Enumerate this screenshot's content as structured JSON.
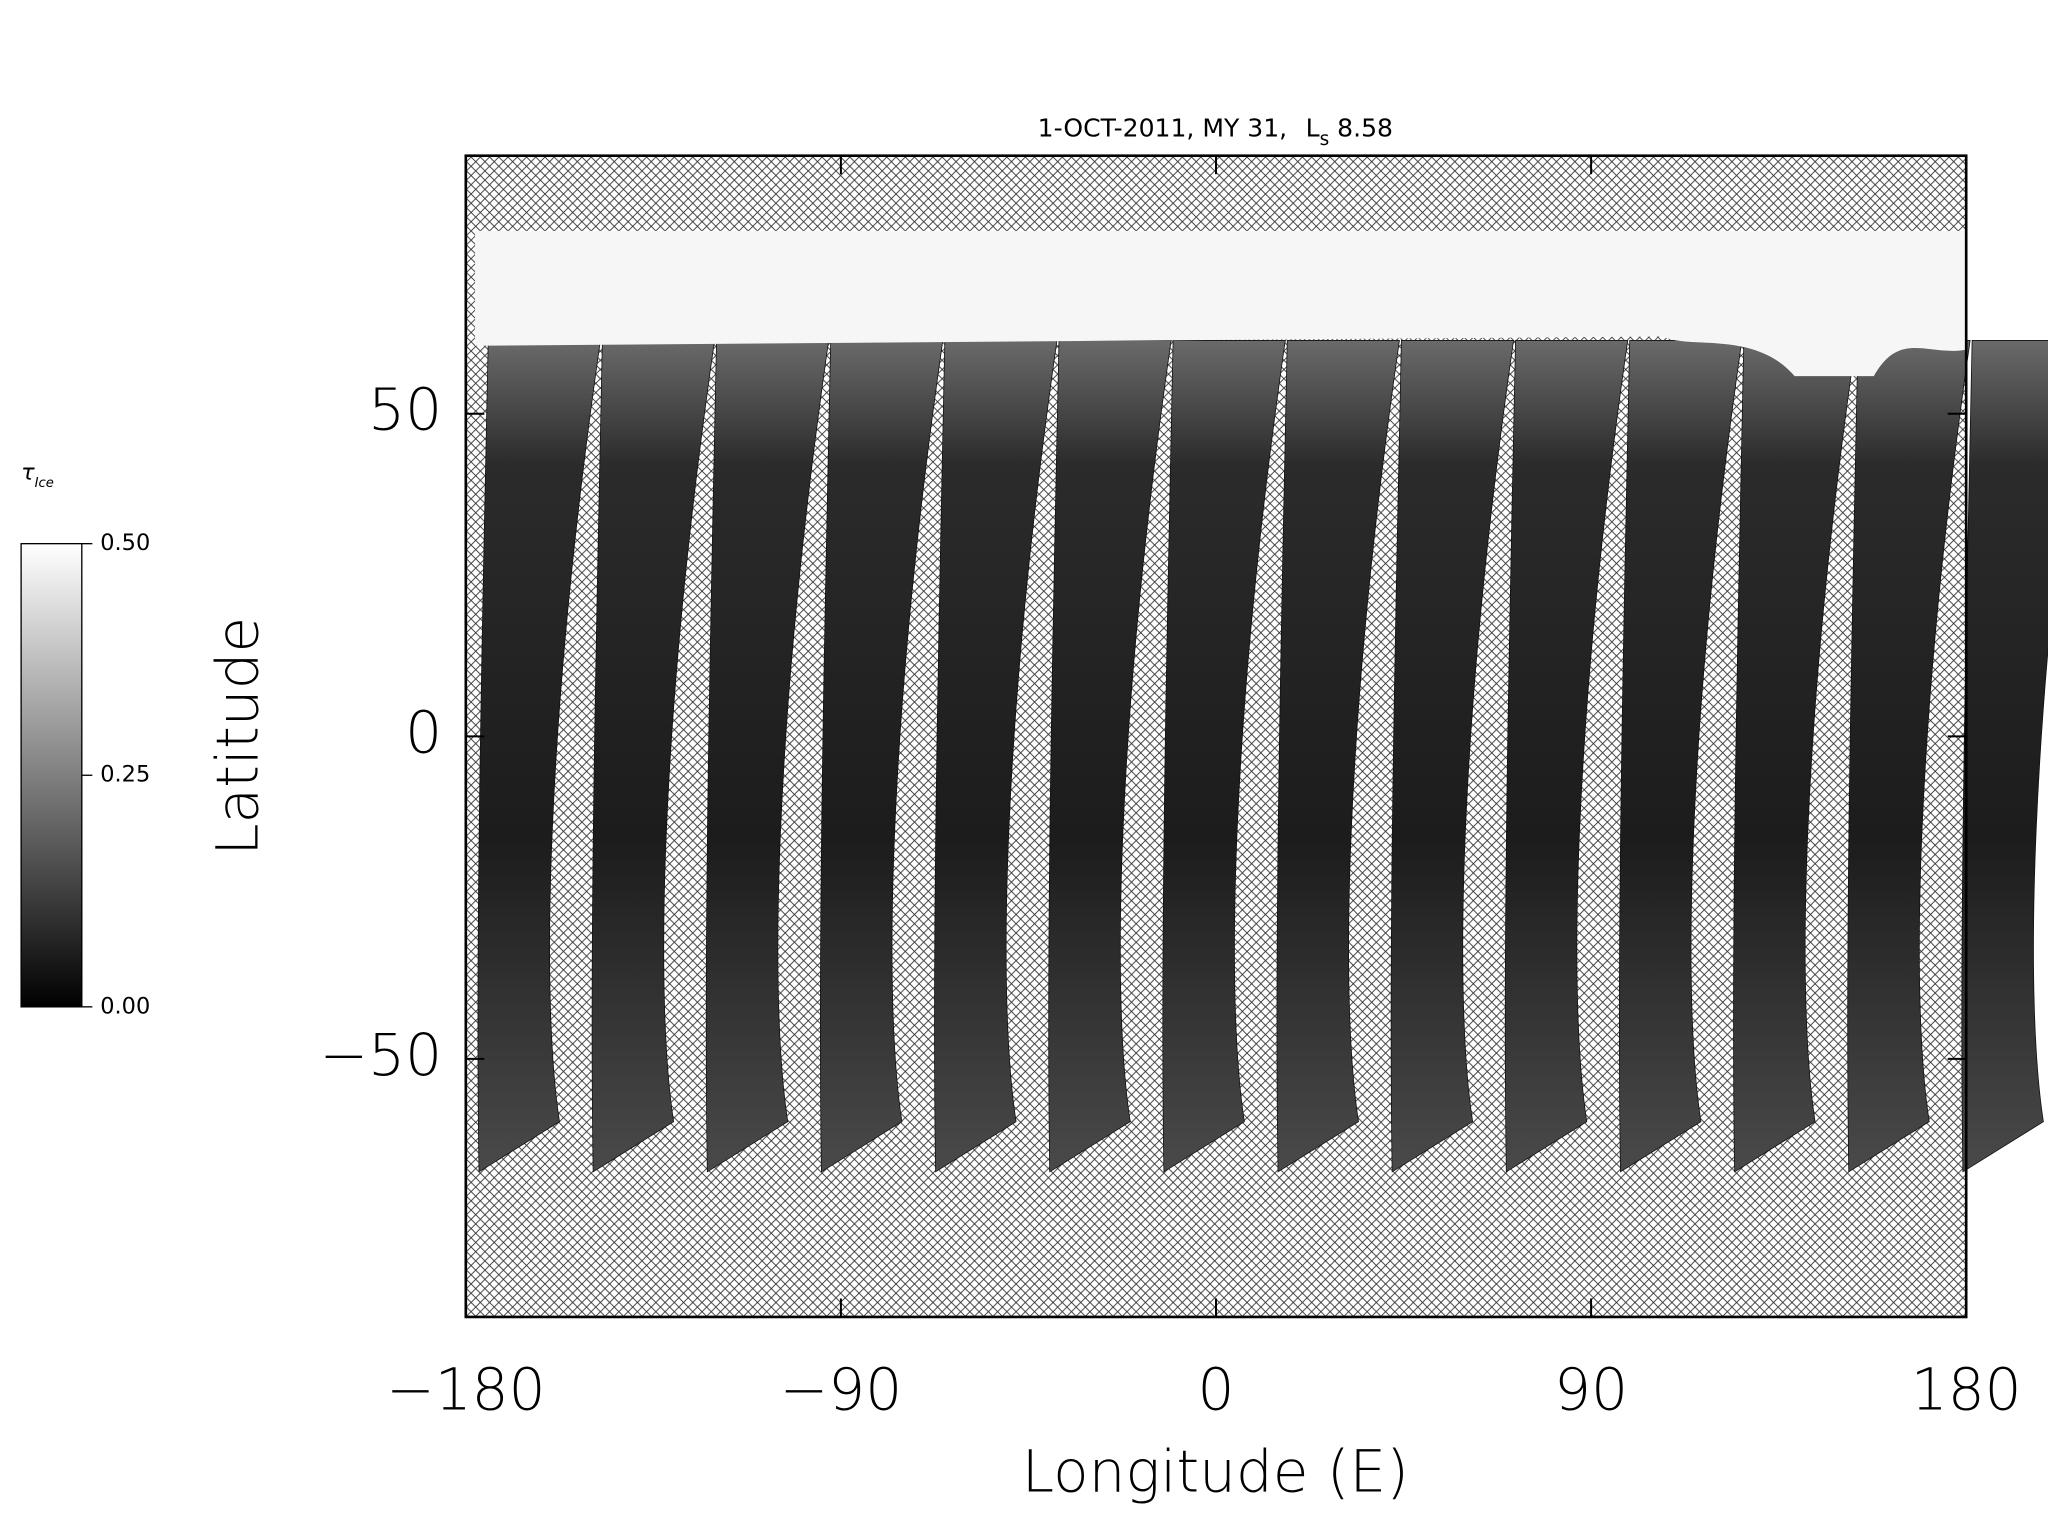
{
  "chart_data": {
    "type": "map",
    "title": {
      "text": "1-OCT-2011, MY 31,",
      "ls_symbol": "L",
      "ls_subscript": "s",
      "ls_value": "8.58"
    },
    "x_label": "Longitude (E)",
    "y_label": "Latitude",
    "xlim": [
      -180,
      180
    ],
    "xticks": [
      {
        "value": -180,
        "label": "−180"
      },
      {
        "value": -90,
        "label": "−90"
      },
      0,
      90,
      180
    ],
    "ylim": [
      -90,
      90
    ],
    "yticks": [
      {
        "value": -50,
        "label": "−50"
      },
      0,
      50
    ],
    "colorbar": {
      "symbol": "τ",
      "subscript": "Ice",
      "range": [
        0,
        0.5
      ],
      "ticks": [
        {
          "value": 0,
          "label": "0.00"
        },
        {
          "value": 0.25,
          "label": "0.25"
        },
        {
          "value": 0.5,
          "label": "0.50"
        }
      ]
    }
  }
}
